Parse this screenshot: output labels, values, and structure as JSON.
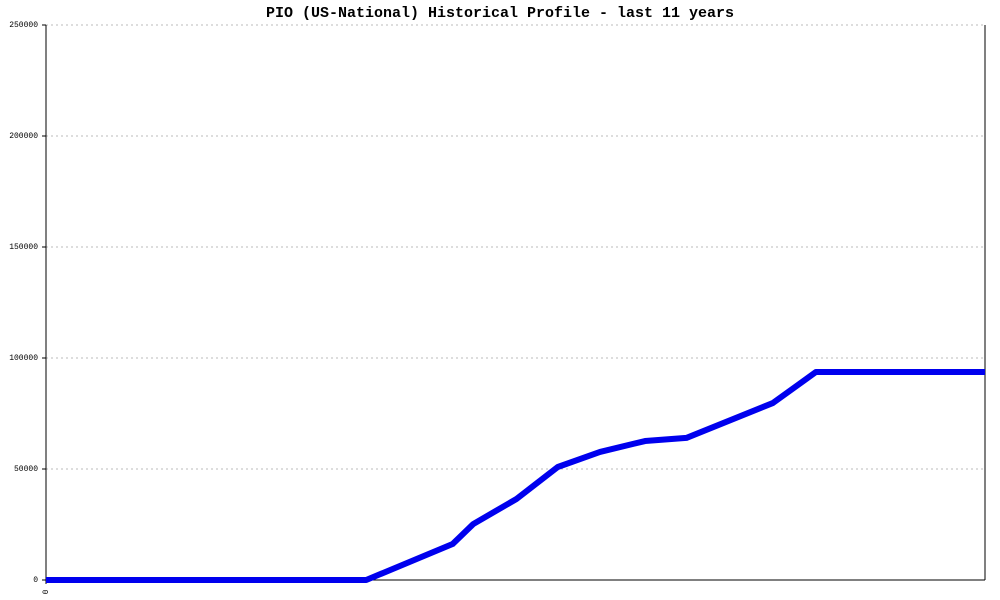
{
  "chart_data": {
    "type": "line",
    "title": "PIO (US-National) Historical Profile - last 11 years",
    "series": [
      {
        "color": "#0000ee",
        "x": [
          0,
          34.1,
          43.3,
          45.5,
          50.1,
          54.5,
          59.0,
          63.8,
          68.2,
          77.4,
          82.0,
          100
        ],
        "values": [
          0,
          0,
          16200,
          25200,
          36500,
          50900,
          57700,
          62600,
          64000,
          79700,
          93700,
          93700
        ]
      }
    ],
    "xlim": [
      0,
      100
    ],
    "xticks": [
      0
    ],
    "ylim": [
      0,
      250000
    ],
    "yticks": [
      0,
      50000,
      100000,
      150000,
      200000,
      250000
    ],
    "grid": true
  }
}
